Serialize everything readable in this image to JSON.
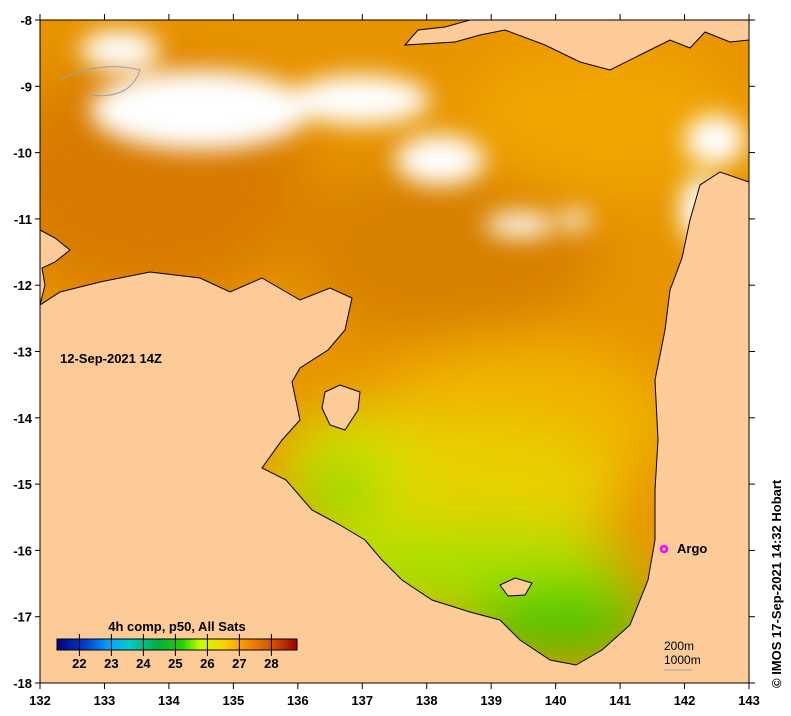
{
  "map": {
    "timestamp_label": "12-Sep-2021 14Z",
    "credit": "© IMOS 17-Sep-2021 14:32 Hobart",
    "lon_ticks": [
      "132",
      "133",
      "134",
      "135",
      "136",
      "137",
      "138",
      "139",
      "140",
      "141",
      "142",
      "143"
    ],
    "lat_ticks": [
      "-8",
      "-9",
      "-10",
      "-11",
      "-12",
      "-13",
      "-14",
      "-15",
      "-16",
      "-17",
      "-18"
    ],
    "argo_label": "Argo",
    "depth_legend": [
      "200m",
      "1000m"
    ],
    "colors": {
      "land": "#fccb98",
      "argo": "#ff00ff",
      "cloud": "#ffffff",
      "contour": "#9aa0b0"
    }
  },
  "colorbar": {
    "title": "4h comp, p50, All Sats",
    "min": 21.3,
    "max": 28.8,
    "tick_labels": [
      "22",
      "23",
      "24",
      "25",
      "26",
      "27",
      "28"
    ],
    "tick_values": [
      22,
      23,
      24,
      25,
      26,
      27,
      28
    ]
  }
}
